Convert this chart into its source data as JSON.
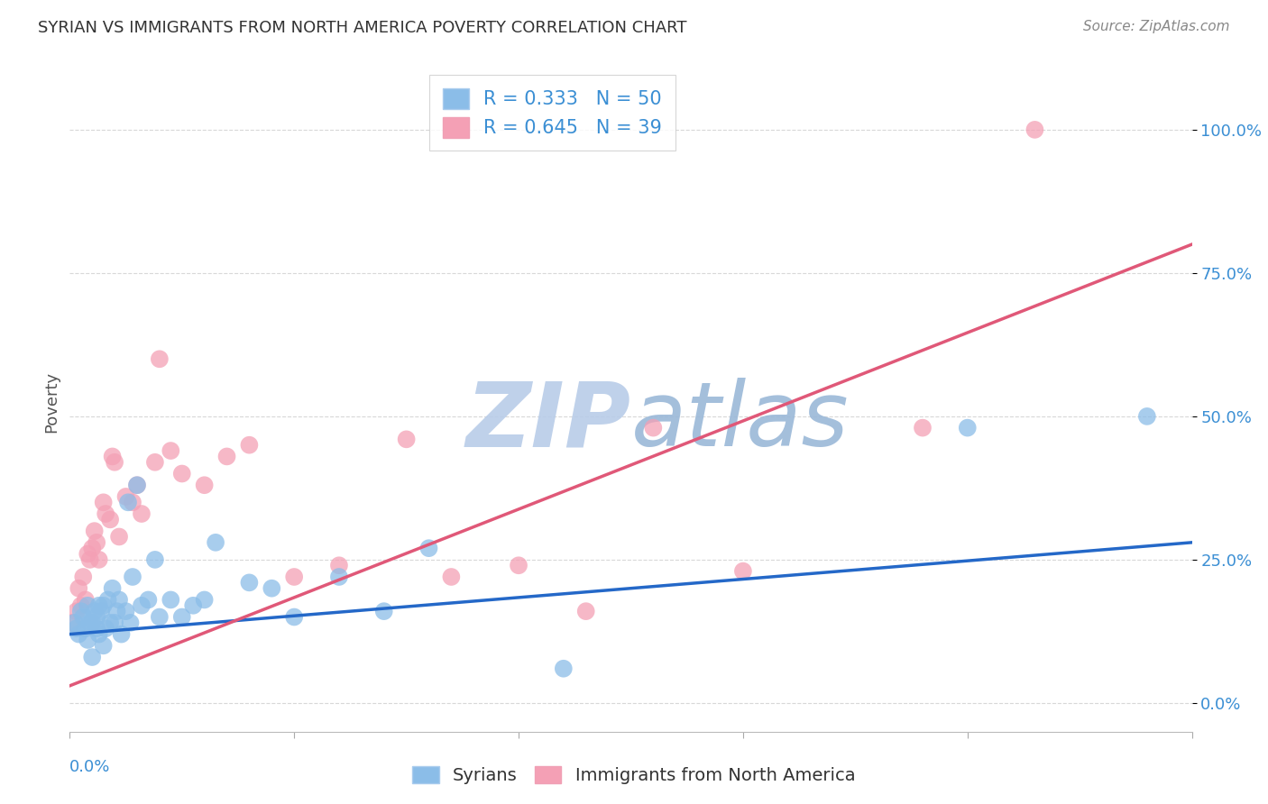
{
  "title": "SYRIAN VS IMMIGRANTS FROM NORTH AMERICA POVERTY CORRELATION CHART",
  "source": "Source: ZipAtlas.com",
  "ylabel": "Poverty",
  "ytick_labels": [
    "0.0%",
    "25.0%",
    "50.0%",
    "75.0%",
    "100.0%"
  ],
  "ytick_values": [
    0.0,
    0.25,
    0.5,
    0.75,
    1.0
  ],
  "xlim": [
    0.0,
    0.5
  ],
  "ylim": [
    -0.05,
    1.1
  ],
  "legend_R1": "0.333",
  "legend_N1": "50",
  "legend_R2": "0.645",
  "legend_N2": "39",
  "color_syrians": "#8bbde8",
  "color_immigrants": "#f4a0b5",
  "color_line_syrians": "#2468c8",
  "color_line_immigrants": "#e05878",
  "watermark_color": "#cddff5",
  "background_color": "#ffffff",
  "grid_color": "#d8d8d8",
  "title_color": "#333333",
  "axis_label_color": "#3b8fd4",
  "syrians_x": [
    0.002,
    0.003,
    0.004,
    0.005,
    0.006,
    0.007,
    0.008,
    0.008,
    0.009,
    0.01,
    0.01,
    0.011,
    0.012,
    0.012,
    0.013,
    0.013,
    0.014,
    0.015,
    0.015,
    0.016,
    0.017,
    0.018,
    0.019,
    0.02,
    0.021,
    0.022,
    0.023,
    0.025,
    0.026,
    0.027,
    0.028,
    0.03,
    0.032,
    0.035,
    0.038,
    0.04,
    0.045,
    0.05,
    0.055,
    0.06,
    0.065,
    0.08,
    0.09,
    0.1,
    0.12,
    0.14,
    0.16,
    0.22,
    0.4,
    0.48
  ],
  "syrians_y": [
    0.14,
    0.13,
    0.12,
    0.16,
    0.15,
    0.13,
    0.17,
    0.11,
    0.14,
    0.14,
    0.08,
    0.16,
    0.13,
    0.15,
    0.12,
    0.17,
    0.16,
    0.17,
    0.1,
    0.13,
    0.18,
    0.14,
    0.2,
    0.14,
    0.16,
    0.18,
    0.12,
    0.16,
    0.35,
    0.14,
    0.22,
    0.38,
    0.17,
    0.18,
    0.25,
    0.15,
    0.18,
    0.15,
    0.17,
    0.18,
    0.28,
    0.21,
    0.2,
    0.15,
    0.22,
    0.16,
    0.27,
    0.06,
    0.48,
    0.5
  ],
  "immigrants_x": [
    0.001,
    0.003,
    0.004,
    0.005,
    0.006,
    0.007,
    0.008,
    0.009,
    0.01,
    0.011,
    0.012,
    0.013,
    0.015,
    0.016,
    0.018,
    0.019,
    0.02,
    0.022,
    0.025,
    0.028,
    0.03,
    0.032,
    0.038,
    0.04,
    0.045,
    0.05,
    0.06,
    0.07,
    0.08,
    0.1,
    0.12,
    0.15,
    0.17,
    0.2,
    0.23,
    0.26,
    0.3,
    0.38,
    0.43
  ],
  "immigrants_y": [
    0.14,
    0.16,
    0.2,
    0.17,
    0.22,
    0.18,
    0.26,
    0.25,
    0.27,
    0.3,
    0.28,
    0.25,
    0.35,
    0.33,
    0.32,
    0.43,
    0.42,
    0.29,
    0.36,
    0.35,
    0.38,
    0.33,
    0.42,
    0.6,
    0.44,
    0.4,
    0.38,
    0.43,
    0.45,
    0.22,
    0.24,
    0.46,
    0.22,
    0.24,
    0.16,
    0.48,
    0.23,
    0.48,
    1.0
  ],
  "line_syrians_x0": 0.0,
  "line_syrians_x1": 0.5,
  "line_syrians_y0": 0.12,
  "line_syrians_y1": 0.28,
  "line_immigrants_x0": 0.0,
  "line_immigrants_x1": 0.5,
  "line_immigrants_y0": 0.03,
  "line_immigrants_y1": 0.8
}
